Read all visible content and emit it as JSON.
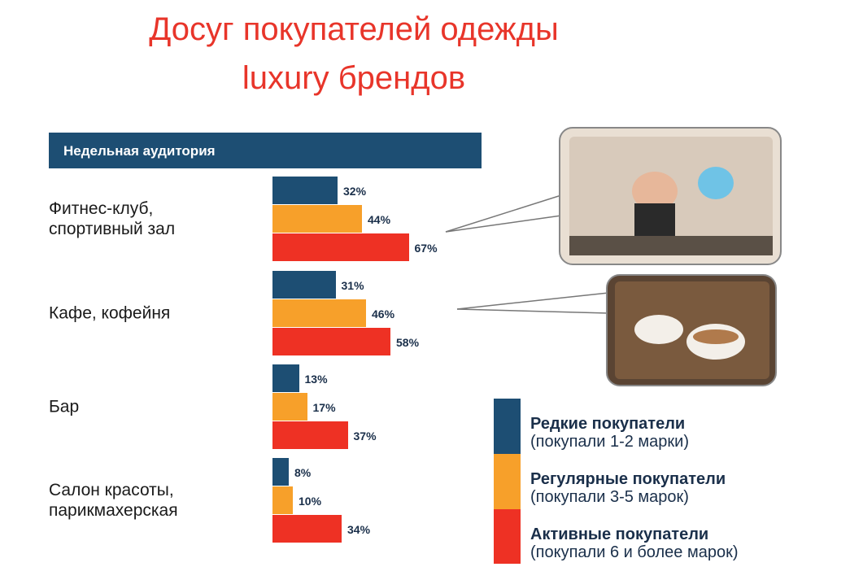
{
  "chart_data": {
    "type": "bar",
    "title": [
      "Досуг покупателей одежды",
      "luxury брендов"
    ],
    "subtitle": "Недельная аудитория",
    "categories": [
      "Фитнес-клуб, спортивный зал",
      "Кафе, кофейня",
      "Бар",
      "Салон красоты, парикмахерская"
    ],
    "series": [
      {
        "name": "Редкие покупатели",
        "description": "(покупали 1-2 марки)",
        "color": "#1d4e73",
        "values": [
          32,
          31,
          13,
          8
        ],
        "value_labels": [
          "32%",
          "31%",
          "13%",
          "8%"
        ]
      },
      {
        "name": "Регулярные покупатели",
        "description": "(покупали 3-5 марок)",
        "color": "#f7a02a",
        "values": [
          44,
          46,
          17,
          10
        ],
        "value_labels": [
          "44%",
          "46%",
          "17%",
          "10%"
        ]
      },
      {
        "name": "Активные покупатели",
        "description": "(покупали 6 и более марок)",
        "color": "#ee3124",
        "values": [
          67,
          58,
          37,
          34
        ],
        "value_labels": [
          "67%",
          "58%",
          "37%",
          "34%"
        ]
      }
    ]
  }
}
